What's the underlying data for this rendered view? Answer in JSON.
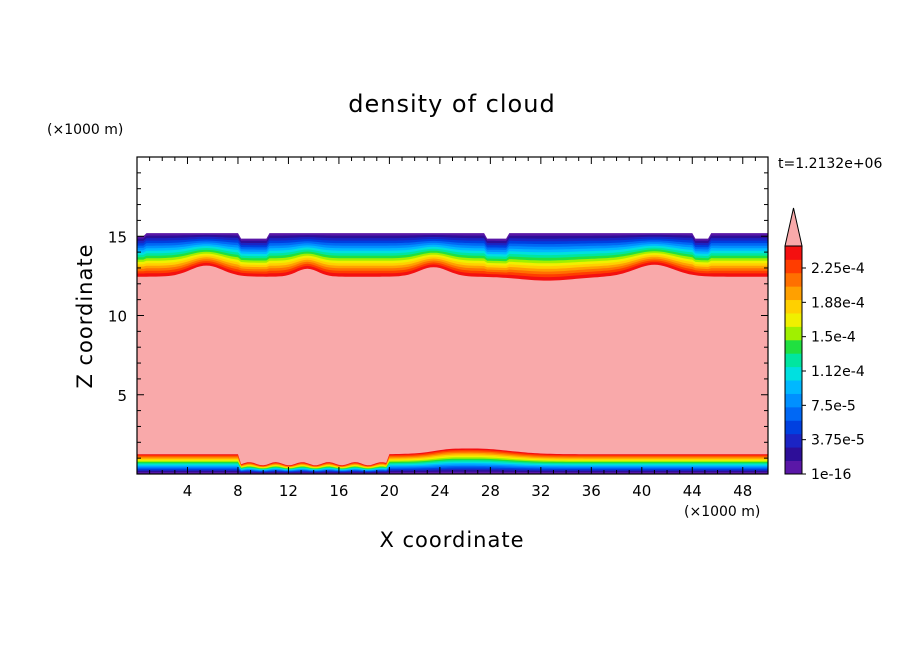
{
  "chart_data": {
    "type": "heatmap",
    "title": "density of cloud",
    "xlabel": "X coordinate",
    "ylabel": "Z coordinate",
    "x_unit": "(×1000 m)",
    "y_unit": "(×1000 m)",
    "time_label": "t=1.2132e+06",
    "xlim": [
      0,
      50
    ],
    "ylim": [
      0,
      20
    ],
    "x_ticks": [
      4,
      8,
      12,
      16,
      20,
      24,
      28,
      32,
      36,
      40,
      44,
      48
    ],
    "y_ticks": [
      5,
      10,
      15
    ],
    "grid": false,
    "colorbar": {
      "placement": "right",
      "labels": [
        "2.25e-4",
        "1.88e-4",
        "1.5e-4",
        "1.12e-4",
        "7.5e-5",
        "3.75e-5",
        "1e-16"
      ],
      "overflow_color": "#f9a9aa",
      "levels_colors": [
        "#5a17a7",
        "#2d0e98",
        "#1b24c4",
        "#0040e0",
        "#0068f5",
        "#0090ff",
        "#00b8ff",
        "#00e0e0",
        "#00e6a0",
        "#20e040",
        "#a0f000",
        "#f0f000",
        "#ffd000",
        "#ffa000",
        "#ff7000",
        "#ff3d00",
        "#f41010"
      ]
    },
    "layers": {
      "main_cloud_bottom_km": 1.2,
      "main_cloud_top_km": 12.5,
      "upper_cloud_top_km": 15.2,
      "surface_layer_top_km": 1.1
    }
  }
}
